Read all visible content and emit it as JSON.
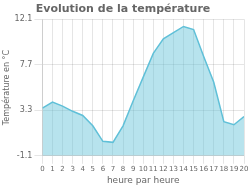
{
  "chart_data": {
    "type": "area",
    "title": "Evolution de la température",
    "xlabel": "heure par heure",
    "ylabel": "Température en °C",
    "x": [
      0,
      1,
      2,
      3,
      4,
      5,
      6,
      7,
      8,
      9,
      10,
      11,
      12,
      13,
      14,
      15,
      16,
      17,
      18,
      19,
      20
    ],
    "values": [
      3.5,
      4.1,
      3.7,
      3.2,
      2.8,
      1.8,
      0.3,
      0.2,
      1.8,
      4.2,
      6.5,
      8.8,
      10.2,
      10.8,
      11.4,
      11.1,
      8.5,
      6.0,
      2.2,
      1.9,
      2.7
    ],
    "color": "#60c0d8",
    "xlim": [
      0,
      20
    ],
    "xticks": [
      0,
      1,
      2,
      3,
      4,
      5,
      6,
      7,
      8,
      9,
      10,
      11,
      12,
      13,
      14,
      15,
      16,
      17,
      18,
      19,
      20
    ],
    "ylim": [
      -1.1,
      12.1
    ],
    "yticks": [
      -1.1,
      3.3,
      7.7,
      12.1
    ],
    "grid": true
  }
}
